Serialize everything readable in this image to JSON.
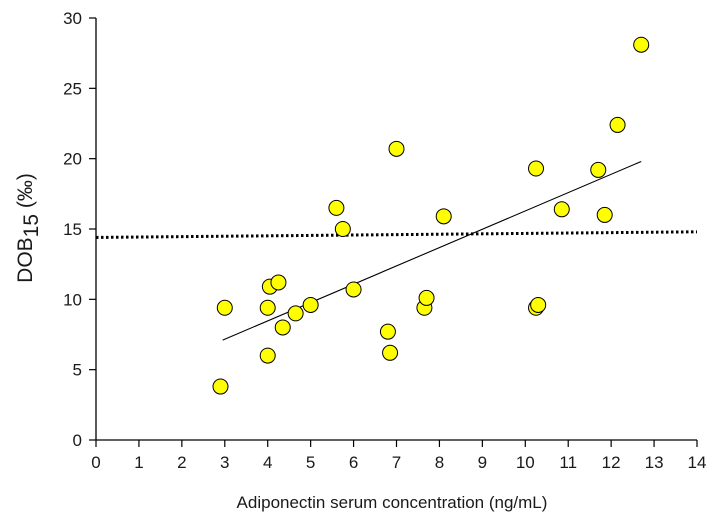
{
  "chart_data": {
    "type": "scatter",
    "xlabel": "Adiponectin serum concentration (ng/mL)",
    "ylabel": {
      "main": "DOB",
      "sub": "15",
      "unit": " (‰)"
    },
    "xlim": [
      0,
      14
    ],
    "ylim": [
      0,
      30
    ],
    "xticks": [
      "0",
      "1",
      "2",
      "3",
      "4",
      "5",
      "6",
      "7",
      "8",
      "9",
      "10",
      "11",
      "12",
      "13",
      "14"
    ],
    "yticks": [
      "0",
      "5",
      "10",
      "15",
      "20",
      "25",
      "30"
    ],
    "grid": false,
    "colors": {
      "marker_fill": "#ffff00",
      "marker_edge": "#000000",
      "line": "#000000"
    },
    "points": [
      {
        "x": 2.9,
        "y": 3.8
      },
      {
        "x": 3.0,
        "y": 9.4
      },
      {
        "x": 4.0,
        "y": 6.0
      },
      {
        "x": 4.0,
        "y": 9.4
      },
      {
        "x": 4.05,
        "y": 10.9
      },
      {
        "x": 4.25,
        "y": 11.2
      },
      {
        "x": 4.35,
        "y": 8.0
      },
      {
        "x": 4.65,
        "y": 9.0
      },
      {
        "x": 5.0,
        "y": 9.6
      },
      {
        "x": 5.6,
        "y": 16.5
      },
      {
        "x": 5.75,
        "y": 15.0
      },
      {
        "x": 6.0,
        "y": 10.7
      },
      {
        "x": 6.8,
        "y": 7.7
      },
      {
        "x": 6.85,
        "y": 6.2
      },
      {
        "x": 7.0,
        "y": 20.7
      },
      {
        "x": 7.65,
        "y": 9.4
      },
      {
        "x": 7.7,
        "y": 10.1
      },
      {
        "x": 8.1,
        "y": 15.9
      },
      {
        "x": 10.25,
        "y": 19.3
      },
      {
        "x": 10.25,
        "y": 9.4
      },
      {
        "x": 10.3,
        "y": 9.6
      },
      {
        "x": 10.85,
        "y": 16.4
      },
      {
        "x": 11.7,
        "y": 19.2
      },
      {
        "x": 11.85,
        "y": 16.0
      },
      {
        "x": 12.15,
        "y": 22.4
      },
      {
        "x": 12.7,
        "y": 28.1
      }
    ],
    "regression_line": {
      "x": [
        2.95,
        12.7
      ],
      "y": [
        7.1,
        19.8
      ]
    },
    "reference_line": {
      "x": [
        0,
        14
      ],
      "y": [
        14.4,
        14.8
      ],
      "style": "dotted"
    }
  }
}
